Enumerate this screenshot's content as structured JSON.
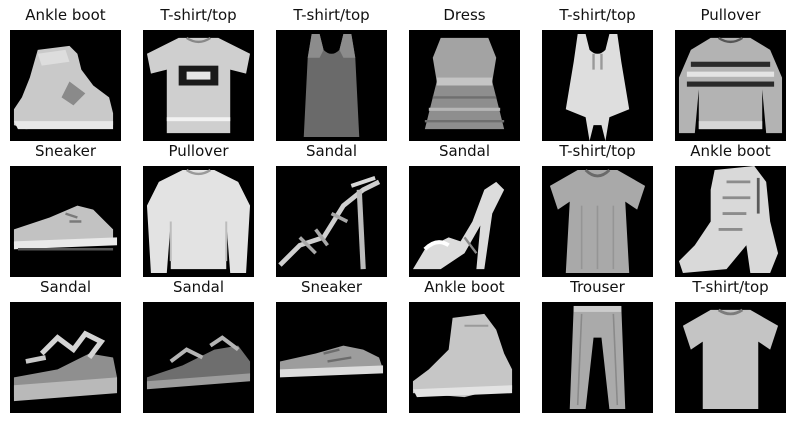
{
  "tiles": [
    {
      "label": "Ankle boot",
      "icon": "ankle-boot"
    },
    {
      "label": "T-shirt/top",
      "icon": "tshirt-graphic"
    },
    {
      "label": "T-shirt/top",
      "icon": "tank-top"
    },
    {
      "label": "Dress",
      "icon": "dress"
    },
    {
      "label": "T-shirt/top",
      "icon": "tank-top-white"
    },
    {
      "label": "Pullover",
      "icon": "pullover-striped"
    },
    {
      "label": "Sneaker",
      "icon": "sneaker"
    },
    {
      "label": "Pullover",
      "icon": "pullover"
    },
    {
      "label": "Sandal",
      "icon": "sandal-heel"
    },
    {
      "label": "Sandal",
      "icon": "sandal-heel-white"
    },
    {
      "label": "T-shirt/top",
      "icon": "tshirt"
    },
    {
      "label": "Ankle boot",
      "icon": "ankle-boot-heel"
    },
    {
      "label": "Sandal",
      "icon": "sandal-flat"
    },
    {
      "label": "Sandal",
      "icon": "sandal-flat-dark"
    },
    {
      "label": "Sneaker",
      "icon": "sneaker-low"
    },
    {
      "label": "Ankle boot",
      "icon": "ankle-boot-low"
    },
    {
      "label": "Trouser",
      "icon": "trouser"
    },
    {
      "label": "T-shirt/top",
      "icon": "tshirt-plain"
    }
  ]
}
